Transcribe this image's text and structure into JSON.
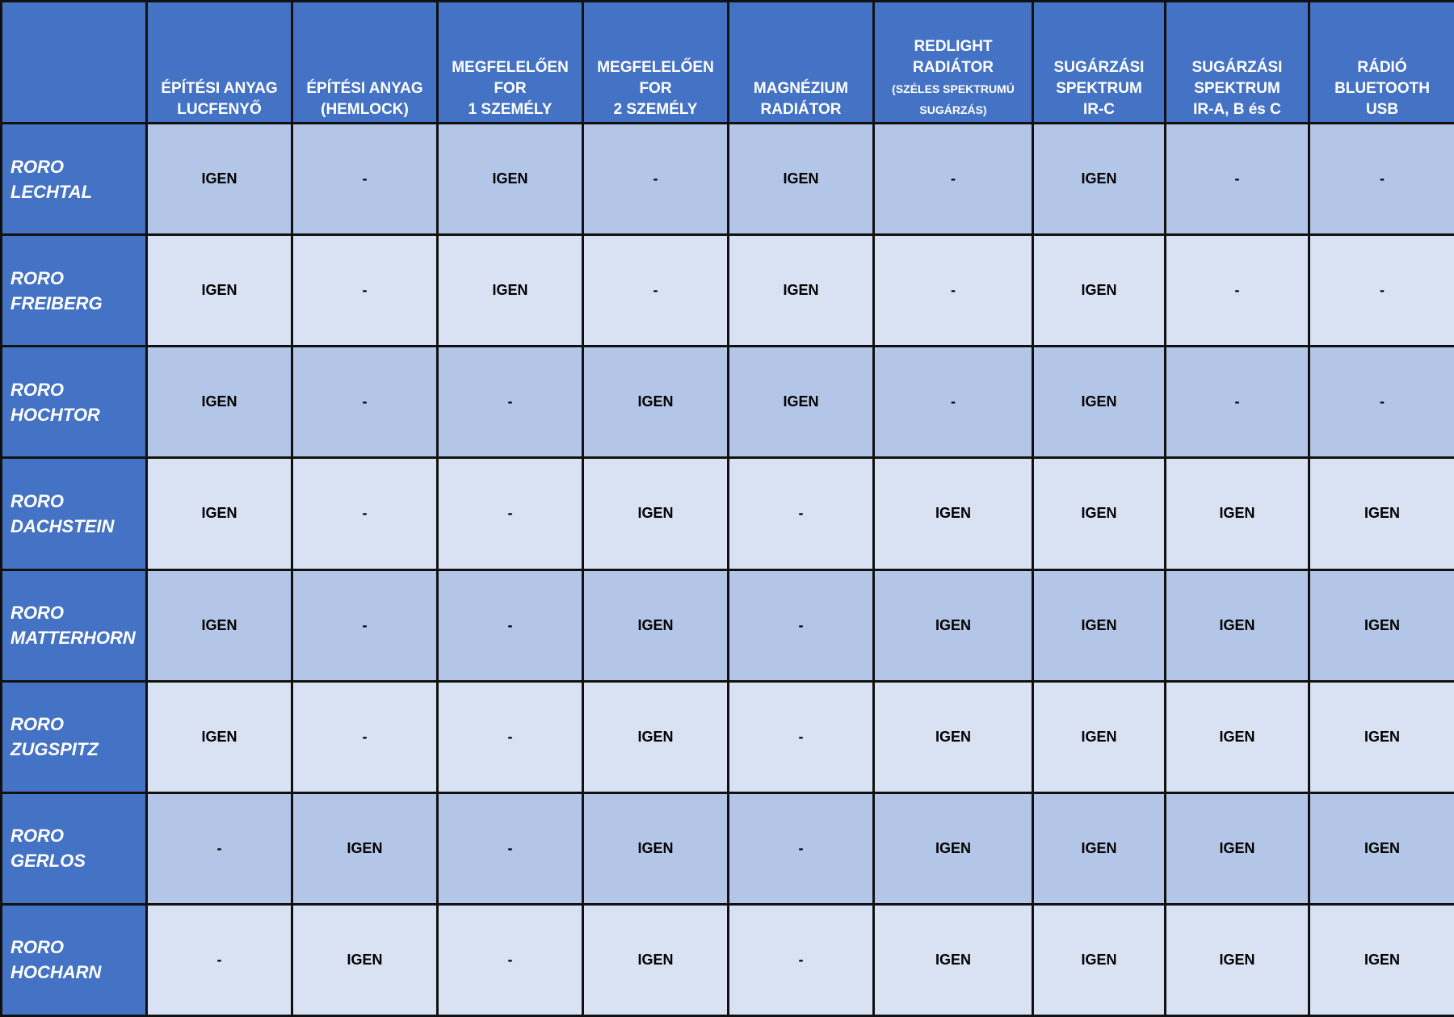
{
  "colors": {
    "header": "#4472C4",
    "row_odd": "#B4C6E7",
    "row_even": "#D9E2F3",
    "border": "#111111"
  },
  "columns": [
    {
      "lines": [
        "ÉPÍTÉSI ANYAG",
        "LUCFENYŐ"
      ]
    },
    {
      "lines": [
        "ÉPÍTÉSI ANYAG",
        "(HEMLOCK)"
      ]
    },
    {
      "lines": [
        "MEGFELELŐEN",
        "FOR",
        "1 SZEMÉLY"
      ]
    },
    {
      "lines": [
        "MEGFELELŐEN",
        "FOR",
        "2 SZEMÉLY"
      ]
    },
    {
      "lines": [
        "MAGNÉZIUM",
        "RADIÁTOR"
      ]
    },
    {
      "lines": [
        "REDLIGHT",
        "RADIÁTOR",
        "(SZÉLES SPEKTRUMÚ",
        "SUGÁRZÁS)"
      ],
      "small_from": 2
    },
    {
      "lines": [
        "SUGÁRZÁSI",
        "SPEKTRUM",
        "IR-C"
      ]
    },
    {
      "lines": [
        "SUGÁRZÁSI",
        "SPEKTRUM",
        "IR-A, B és C"
      ]
    },
    {
      "lines": [
        "RÁDIÓ",
        "BLUETOOTH",
        "USB"
      ]
    }
  ],
  "rows": [
    {
      "name": [
        "RORO",
        "LECHTAL"
      ],
      "cells": [
        "IGEN",
        "-",
        "IGEN",
        "-",
        "IGEN",
        "-",
        "IGEN",
        "-",
        "-"
      ]
    },
    {
      "name": [
        "RORO",
        "FREIBERG"
      ],
      "cells": [
        "IGEN",
        "-",
        "IGEN",
        "-",
        "IGEN",
        "-",
        "IGEN",
        "-",
        "-"
      ]
    },
    {
      "name": [
        "RORO",
        "HOCHTOR"
      ],
      "cells": [
        "IGEN",
        "-",
        "-",
        "IGEN",
        "IGEN",
        "-",
        "IGEN",
        "-",
        "-"
      ]
    },
    {
      "name": [
        "RORO",
        "DACHSTEIN"
      ],
      "cells": [
        "IGEN",
        "-",
        "-",
        "IGEN",
        "-",
        "IGEN",
        "IGEN",
        "IGEN",
        "IGEN"
      ]
    },
    {
      "name": [
        "RORO",
        "MATTERHORN"
      ],
      "cells": [
        "IGEN",
        "-",
        "-",
        "IGEN",
        "-",
        "IGEN",
        "IGEN",
        "IGEN",
        "IGEN"
      ]
    },
    {
      "name": [
        "RORO",
        "ZUGSPITZ"
      ],
      "cells": [
        "IGEN",
        "-",
        "-",
        "IGEN",
        "-",
        "IGEN",
        "IGEN",
        "IGEN",
        "IGEN"
      ]
    },
    {
      "name": [
        "RORO",
        "GERLOS"
      ],
      "cells": [
        "-",
        "IGEN",
        "-",
        "IGEN",
        "-",
        "IGEN",
        "IGEN",
        "IGEN",
        "IGEN"
      ]
    },
    {
      "name": [
        "RORO",
        "HOCHARN"
      ],
      "cells": [
        "-",
        "IGEN",
        "-",
        "IGEN",
        "-",
        "IGEN",
        "IGEN",
        "IGEN",
        "IGEN"
      ]
    }
  ]
}
